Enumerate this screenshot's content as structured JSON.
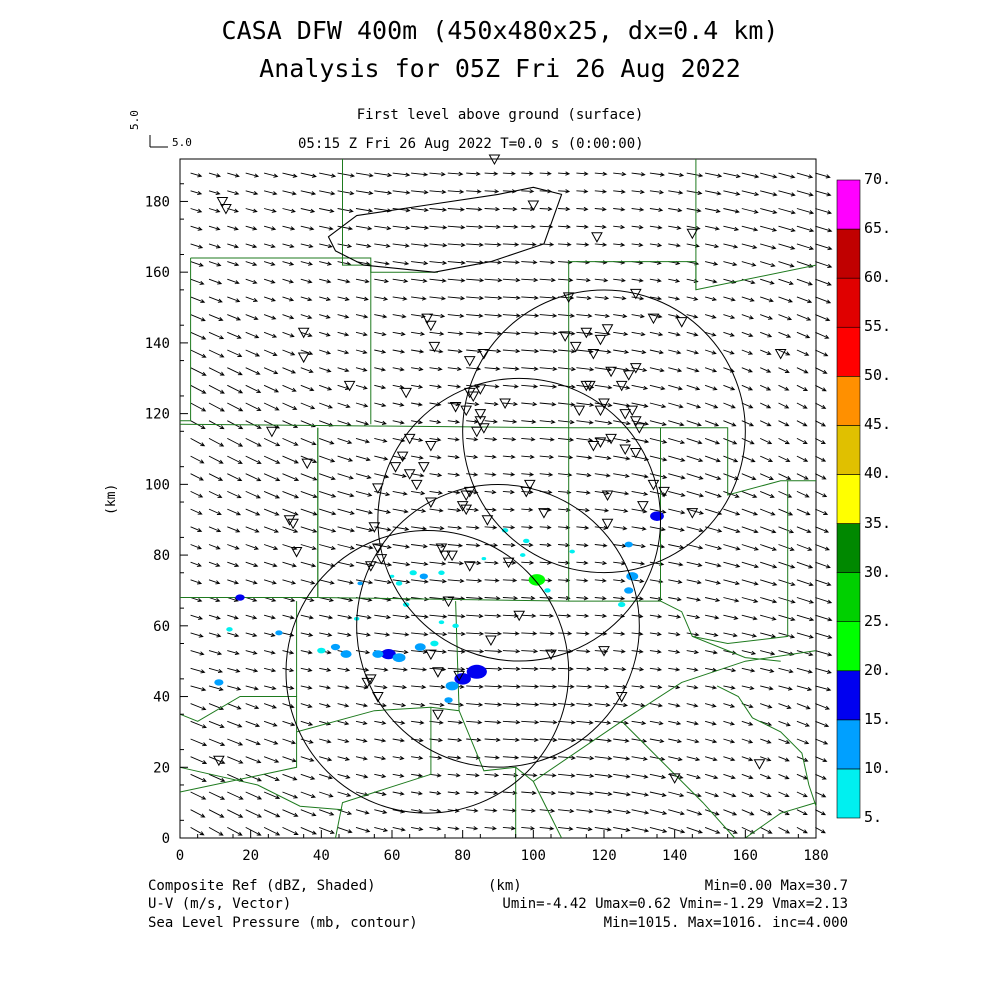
{
  "title": {
    "line1": "CASA DFW 400m (450x480x25, dx=0.4 km)",
    "line2": "Analysis for 05Z Fri 26 Aug 2022"
  },
  "subtitle": "First level above ground (surface)",
  "time_line": "05:15 Z Fri 26 Aug 2022    T=0.0 s (0:00:00)",
  "reference_vector": {
    "label": "5.0",
    "side_label": "5.0"
  },
  "axes": {
    "xlabel": "(km)",
    "ylabel": "(km)",
    "x_ticks": [
      "0",
      "20",
      "40",
      "60",
      "80",
      "100",
      "120",
      "140",
      "160",
      "180"
    ],
    "y_ticks": [
      "0",
      "20",
      "40",
      "60",
      "80",
      "100",
      "120",
      "140",
      "160",
      "180"
    ],
    "xlim": [
      0,
      180
    ],
    "ylim": [
      0,
      192
    ]
  },
  "colorbar": {
    "labels": [
      "5.",
      "10.",
      "15.",
      "20.",
      "25.",
      "30.",
      "35.",
      "40.",
      "45.",
      "50.",
      "55.",
      "60.",
      "65.",
      "70."
    ],
    "colors": [
      "#00f0f0",
      "#00a0ff",
      "#0000f0",
      "#00ff00",
      "#00d000",
      "#008800",
      "#ffff00",
      "#e0c000",
      "#ff9000",
      "#ff0000",
      "#e00000",
      "#c00000",
      "#ff00ff"
    ]
  },
  "footer": {
    "left": [
      "Composite Ref (dBZ, Shaded)",
      "U-V (m/s, Vector)",
      "Sea Level Pressure (mb, contour)"
    ],
    "center": "(km)",
    "right": [
      "Min=0.00 Max=30.7",
      "Umin=-4.42 Umax=0.62 Vmin=-1.29 Vmax=2.13",
      "Min=1015. Max=1016. inc=4.000"
    ]
  },
  "colors": {
    "boundary": "#1e7a1e",
    "contour": "#000000",
    "vector": "#000000"
  },
  "radars": [
    {
      "cx_km": 70,
      "cy_km": 47,
      "r_km": 40
    },
    {
      "cx_km": 90,
      "cy_km": 60,
      "r_km": 40
    },
    {
      "cx_km": 120,
      "cy_km": 115,
      "r_km": 40
    },
    {
      "cx_km": 96,
      "cy_km": 90,
      "r_km": 40
    }
  ],
  "pressure_contour_km": [
    [
      42,
      170
    ],
    [
      50,
      176
    ],
    [
      70,
      179
    ],
    [
      90,
      182
    ],
    [
      100,
      184
    ],
    [
      108,
      182
    ],
    [
      103,
      168
    ],
    [
      88,
      163
    ],
    [
      72,
      160
    ],
    [
      52,
      162
    ],
    [
      44,
      166
    ]
  ],
  "stations_km": [
    [
      12,
      180
    ],
    [
      13,
      178
    ],
    [
      89,
      192
    ],
    [
      100,
      179
    ],
    [
      118,
      170
    ],
    [
      145,
      171
    ],
    [
      35,
      143
    ],
    [
      35,
      136
    ],
    [
      70,
      147
    ],
    [
      71,
      145
    ],
    [
      48,
      128
    ],
    [
      72,
      139
    ],
    [
      110,
      153
    ],
    [
      129,
      154
    ],
    [
      134,
      147
    ],
    [
      142,
      146
    ],
    [
      121,
      144
    ],
    [
      109,
      142
    ],
    [
      115,
      143
    ],
    [
      119,
      141
    ],
    [
      117,
      137
    ],
    [
      122,
      132
    ],
    [
      112,
      139
    ],
    [
      115,
      128
    ],
    [
      116,
      128
    ],
    [
      125,
      128
    ],
    [
      127,
      131
    ],
    [
      129,
      133
    ],
    [
      120,
      123
    ],
    [
      119,
      121
    ],
    [
      113,
      121
    ],
    [
      126,
      120
    ],
    [
      128,
      121
    ],
    [
      130,
      116
    ],
    [
      126,
      110
    ],
    [
      129,
      109
    ],
    [
      119,
      112
    ],
    [
      122,
      113
    ],
    [
      117,
      111
    ],
    [
      86,
      137
    ],
    [
      82,
      135
    ],
    [
      85,
      127
    ],
    [
      82,
      126
    ],
    [
      83,
      125
    ],
    [
      92,
      123
    ],
    [
      78,
      122
    ],
    [
      81,
      121
    ],
    [
      85,
      120
    ],
    [
      85,
      118
    ],
    [
      86,
      116
    ],
    [
      84,
      115
    ],
    [
      64,
      126
    ],
    [
      65,
      113
    ],
    [
      63,
      108
    ],
    [
      61,
      105
    ],
    [
      65,
      103
    ],
    [
      67,
      100
    ],
    [
      56,
      99
    ],
    [
      26,
      115
    ],
    [
      36,
      106
    ],
    [
      31,
      90
    ],
    [
      32,
      89
    ],
    [
      33,
      81
    ],
    [
      55,
      88
    ],
    [
      56,
      82
    ],
    [
      57,
      79
    ],
    [
      54,
      77
    ],
    [
      69,
      105
    ],
    [
      71,
      111
    ],
    [
      71,
      95
    ],
    [
      80,
      94
    ],
    [
      81,
      93
    ],
    [
      87,
      90
    ],
    [
      98,
      98
    ],
    [
      99,
      100
    ],
    [
      103,
      92
    ],
    [
      121,
      97
    ],
    [
      121,
      89
    ],
    [
      131,
      94
    ],
    [
      134,
      100
    ],
    [
      137,
      98
    ],
    [
      145,
      92
    ],
    [
      82,
      98
    ],
    [
      81,
      97
    ],
    [
      74,
      82
    ],
    [
      75,
      80
    ],
    [
      77,
      80
    ],
    [
      82,
      77
    ],
    [
      93,
      78
    ],
    [
      96,
      63
    ],
    [
      76,
      67
    ],
    [
      88,
      56
    ],
    [
      105,
      52
    ],
    [
      120,
      53
    ],
    [
      125,
      40
    ],
    [
      140,
      17
    ],
    [
      164,
      21
    ],
    [
      11,
      22
    ],
    [
      53,
      44
    ],
    [
      54,
      45
    ],
    [
      56,
      40
    ],
    [
      71,
      52
    ],
    [
      73,
      47
    ],
    [
      79,
      46
    ],
    [
      73,
      35
    ],
    [
      170,
      137
    ],
    [
      129,
      118
    ]
  ],
  "echoes_km": [
    {
      "x": 84,
      "y": 47,
      "r": 2.2,
      "c": 2
    },
    {
      "x": 80,
      "y": 45,
      "r": 1.8,
      "c": 2
    },
    {
      "x": 77,
      "y": 43,
      "r": 1.4,
      "c": 1
    },
    {
      "x": 59,
      "y": 52,
      "r": 1.6,
      "c": 2
    },
    {
      "x": 62,
      "y": 51,
      "r": 1.4,
      "c": 1
    },
    {
      "x": 56,
      "y": 52,
      "r": 1.2,
      "c": 1
    },
    {
      "x": 47,
      "y": 52,
      "r": 1.2,
      "c": 1
    },
    {
      "x": 44,
      "y": 54,
      "r": 1.0,
      "c": 1
    },
    {
      "x": 40,
      "y": 53,
      "r": 0.9,
      "c": 0
    },
    {
      "x": 68,
      "y": 54,
      "r": 1.2,
      "c": 1
    },
    {
      "x": 72,
      "y": 55,
      "r": 0.9,
      "c": 0
    },
    {
      "x": 76,
      "y": 39,
      "r": 0.9,
      "c": 1
    },
    {
      "x": 17,
      "y": 68,
      "r": 1.0,
      "c": 2
    },
    {
      "x": 11,
      "y": 44,
      "r": 1.0,
      "c": 1
    },
    {
      "x": 14,
      "y": 59,
      "r": 0.7,
      "c": 0
    },
    {
      "x": 28,
      "y": 58,
      "r": 0.8,
      "c": 1
    },
    {
      "x": 101,
      "y": 73,
      "r": 1.1,
      "c": 5
    },
    {
      "x": 101,
      "y": 73,
      "r": 1.8,
      "c": 3
    },
    {
      "x": 135,
      "y": 91,
      "r": 1.5,
      "c": 2
    },
    {
      "x": 128,
      "y": 74,
      "r": 1.3,
      "c": 1
    },
    {
      "x": 127,
      "y": 70,
      "r": 1.0,
      "c": 1
    },
    {
      "x": 125,
      "y": 66,
      "r": 0.8,
      "c": 0
    },
    {
      "x": 127,
      "y": 83,
      "r": 0.9,
      "c": 1
    },
    {
      "x": 104,
      "y": 70,
      "r": 0.7,
      "c": 0
    },
    {
      "x": 69,
      "y": 74,
      "r": 0.9,
      "c": 1
    },
    {
      "x": 66,
      "y": 75,
      "r": 0.8,
      "c": 0
    },
    {
      "x": 74,
      "y": 75,
      "r": 0.7,
      "c": 0
    },
    {
      "x": 62,
      "y": 72,
      "r": 0.7,
      "c": 0
    },
    {
      "x": 51,
      "y": 72,
      "r": 0.6,
      "c": 1
    },
    {
      "x": 98,
      "y": 84,
      "r": 0.7,
      "c": 0
    },
    {
      "x": 97,
      "y": 80,
      "r": 0.6,
      "c": 0
    },
    {
      "x": 111,
      "y": 81,
      "r": 0.6,
      "c": 0
    },
    {
      "x": 92,
      "y": 87,
      "r": 0.7,
      "c": 0
    },
    {
      "x": 78,
      "y": 60,
      "r": 0.7,
      "c": 0
    },
    {
      "x": 74,
      "y": 61,
      "r": 0.6,
      "c": 0
    },
    {
      "x": 64,
      "y": 66,
      "r": 0.7,
      "c": 0
    },
    {
      "x": 50,
      "y": 62,
      "r": 0.6,
      "c": 0
    },
    {
      "x": 60,
      "y": 74,
      "r": 0.5,
      "c": 0
    },
    {
      "x": 86,
      "y": 79,
      "r": 0.5,
      "c": 0
    }
  ]
}
